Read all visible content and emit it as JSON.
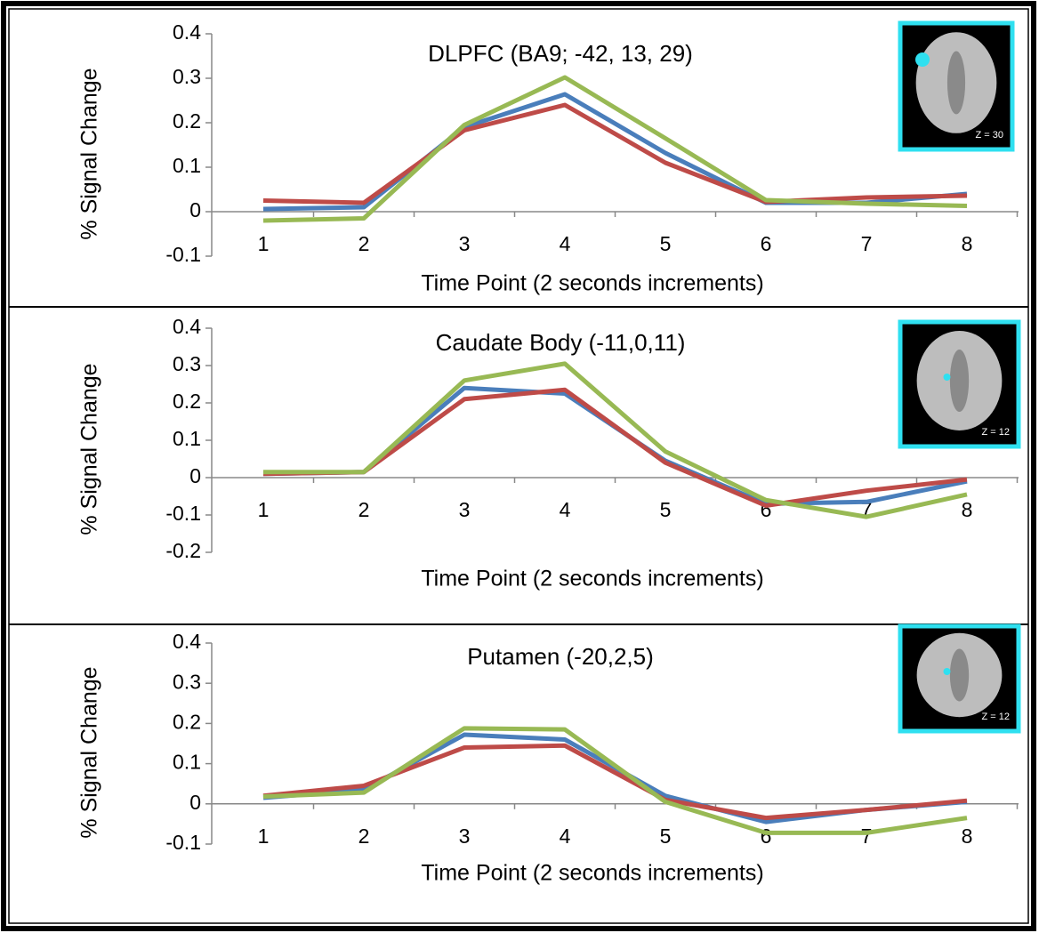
{
  "chart_data": [
    {
      "type": "line",
      "title": "DLPFC (BA9; -42, 13, 29)",
      "x_label": "Time Point (2 seconds increments)",
      "y_label": "% Signal Change",
      "inset_label": "Z = 30",
      "categories": [
        "1",
        "2",
        "3",
        "4",
        "5",
        "6",
        "7",
        "8"
      ],
      "ylim": [
        -0.1,
        0.4
      ],
      "yticks": [
        -0.1,
        0,
        0.1,
        0.2,
        0.3,
        0.4
      ],
      "series": [
        {
          "color": "#4a7ebb",
          "values": [
            0.006,
            0.01,
            0.19,
            0.264,
            0.132,
            0.02,
            0.02,
            0.04
          ]
        },
        {
          "color": "#be4b48",
          "values": [
            0.025,
            0.02,
            0.183,
            0.24,
            0.11,
            0.022,
            0.032,
            0.036
          ]
        },
        {
          "color": "#98b954",
          "values": [
            -0.02,
            -0.015,
            0.195,
            0.302,
            0.165,
            0.026,
            0.018,
            0.013
          ]
        }
      ]
    },
    {
      "type": "line",
      "title": "Caudate Body (-11,0,11)",
      "x_label": "Time Point (2 seconds increments)",
      "y_label": "% Signal Change",
      "inset_label": "Z = 12",
      "categories": [
        "1",
        "2",
        "3",
        "4",
        "5",
        "6",
        "7",
        "8"
      ],
      "ylim": [
        -0.2,
        0.4
      ],
      "yticks": [
        -0.2,
        -0.1,
        0,
        0.1,
        0.2,
        0.3,
        0.4
      ],
      "series": [
        {
          "color": "#4a7ebb",
          "values": [
            0.01,
            0.015,
            0.24,
            0.225,
            0.045,
            -0.07,
            -0.065,
            -0.01
          ]
        },
        {
          "color": "#be4b48",
          "values": [
            0.01,
            0.015,
            0.21,
            0.235,
            0.04,
            -0.075,
            -0.035,
            -0.005
          ]
        },
        {
          "color": "#98b954",
          "values": [
            0.015,
            0.015,
            0.26,
            0.305,
            0.07,
            -0.06,
            -0.105,
            -0.045
          ]
        }
      ]
    },
    {
      "type": "line",
      "title": "Putamen (-20,2,5)",
      "x_label": "Time Point (2 seconds increments)",
      "y_label": "% Signal Change",
      "inset_label": "Z = 12",
      "categories": [
        "1",
        "2",
        "3",
        "4",
        "5",
        "6",
        "7",
        "8"
      ],
      "ylim": [
        -0.1,
        0.4
      ],
      "yticks": [
        -0.1,
        0,
        0.1,
        0.2,
        0.3,
        0.4
      ],
      "series": [
        {
          "color": "#4a7ebb",
          "values": [
            0.015,
            0.035,
            0.172,
            0.16,
            0.02,
            -0.045,
            -0.015,
            0.005
          ]
        },
        {
          "color": "#be4b48",
          "values": [
            0.02,
            0.045,
            0.14,
            0.145,
            0.01,
            -0.035,
            -0.015,
            0.008
          ]
        },
        {
          "color": "#98b954",
          "values": [
            0.018,
            0.028,
            0.188,
            0.185,
            0.005,
            -0.072,
            -0.072,
            -0.035
          ]
        }
      ]
    }
  ]
}
